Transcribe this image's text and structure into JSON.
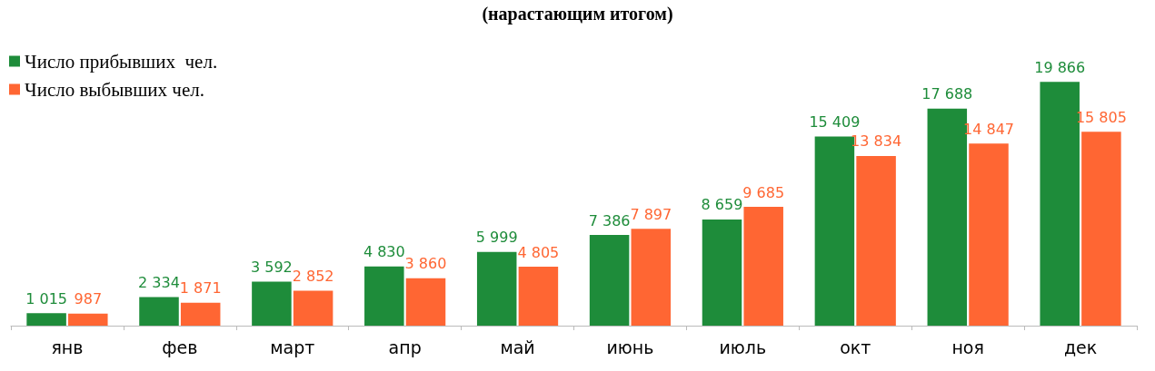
{
  "chart_data": {
    "type": "bar",
    "title": "(нарастающим итогом)",
    "categories": [
      "янв",
      "фев",
      "март",
      "апр",
      "май",
      "июнь",
      "июль",
      "окт",
      "ноя",
      "дек"
    ],
    "series": [
      {
        "name": "Число прибывших  чел.",
        "color": "#1e8c3a",
        "values": [
          1015,
          2334,
          3592,
          4830,
          5999,
          7386,
          8659,
          15409,
          17688,
          19866
        ],
        "value_labels": [
          "1 015",
          "2 334",
          "3 592",
          "4 830",
          "5 999",
          "7 386",
          "8 659",
          "15 409",
          "17 688",
          "19 866"
        ]
      },
      {
        "name": "Число выбывших чел.",
        "color": "#ff6633",
        "values": [
          987,
          1871,
          2852,
          3860,
          4805,
          7897,
          9685,
          13834,
          14847,
          15805
        ],
        "value_labels": [
          "987",
          "1 871",
          "2 852",
          "3 860",
          "4 805",
          "7 897",
          "9 685",
          "13 834",
          "14 847",
          "15 805"
        ]
      }
    ],
    "legend": "top left"
  }
}
